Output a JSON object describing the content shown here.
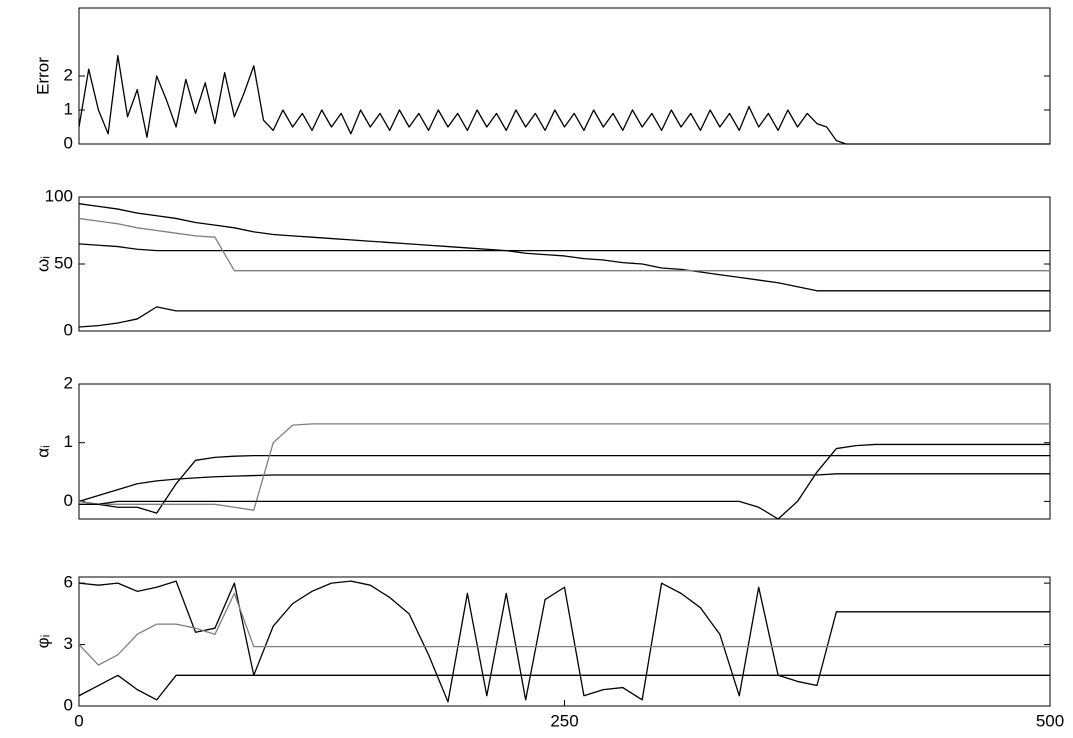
{
  "chart_data": [
    {
      "type": "line",
      "ylabel": "Error",
      "x": [
        0,
        5,
        10,
        15,
        20,
        25,
        30,
        35,
        40,
        45,
        50,
        55,
        60,
        65,
        70,
        75,
        80,
        85,
        90,
        95,
        100,
        105,
        110,
        115,
        120,
        125,
        130,
        135,
        140,
        145,
        150,
        155,
        160,
        165,
        170,
        175,
        180,
        185,
        190,
        195,
        200,
        205,
        210,
        215,
        220,
        225,
        230,
        235,
        240,
        245,
        250,
        255,
        260,
        265,
        270,
        275,
        280,
        285,
        290,
        295,
        300,
        305,
        310,
        315,
        320,
        325,
        330,
        335,
        340,
        345,
        350,
        355,
        360,
        365,
        370,
        375,
        380,
        385,
        390,
        395,
        400,
        405,
        410,
        415,
        420,
        425,
        430,
        435,
        440,
        445,
        450,
        455,
        460,
        465,
        470,
        475,
        480,
        485,
        490,
        495,
        500
      ],
      "series": [
        {
          "color": "#000000",
          "values": [
            0.5,
            2.2,
            1.0,
            0.3,
            2.6,
            0.8,
            1.6,
            0.2,
            2.0,
            1.3,
            0.5,
            1.9,
            0.9,
            1.8,
            0.6,
            2.1,
            0.8,
            1.5,
            2.3,
            0.7,
            0.4,
            1.0,
            0.5,
            0.9,
            0.4,
            1.0,
            0.5,
            0.9,
            0.3,
            1.0,
            0.5,
            0.9,
            0.4,
            1.0,
            0.5,
            0.9,
            0.4,
            1.0,
            0.5,
            0.9,
            0.4,
            1.0,
            0.5,
            0.9,
            0.4,
            1.0,
            0.5,
            0.9,
            0.4,
            1.0,
            0.5,
            0.9,
            0.4,
            1.0,
            0.5,
            0.9,
            0.4,
            1.0,
            0.5,
            0.9,
            0.4,
            1.0,
            0.5,
            0.9,
            0.4,
            1.0,
            0.5,
            0.9,
            0.4,
            1.1,
            0.5,
            0.9,
            0.4,
            1.0,
            0.5,
            0.9,
            0.6,
            0.5,
            0.1,
            0,
            0,
            0,
            0,
            0,
            0,
            0,
            0,
            0,
            0,
            0,
            0,
            0,
            0,
            0,
            0,
            0,
            0,
            0,
            0,
            0,
            0
          ]
        }
      ],
      "xlim": [
        0,
        500
      ],
      "ylim": [
        0,
        4
      ],
      "yticks": [
        0,
        1,
        2
      ]
    },
    {
      "type": "line",
      "ylabel": "ωᵢ",
      "x": [
        0,
        10,
        20,
        30,
        40,
        50,
        60,
        70,
        80,
        90,
        100,
        110,
        120,
        130,
        140,
        150,
        160,
        170,
        180,
        190,
        200,
        210,
        220,
        230,
        240,
        250,
        260,
        270,
        280,
        290,
        300,
        310,
        320,
        330,
        340,
        350,
        360,
        370,
        380,
        390,
        400,
        410,
        420,
        430,
        440,
        450,
        460,
        470,
        480,
        490,
        500
      ],
      "series": [
        {
          "color": "#000000",
          "values": [
            95,
            93,
            91,
            88,
            86,
            84,
            81,
            79,
            77,
            74,
            72,
            71,
            70,
            69,
            68,
            67,
            66,
            65,
            64,
            63,
            62,
            61,
            60,
            58,
            57,
            56,
            54,
            53,
            51,
            50,
            47,
            46,
            44,
            42,
            40,
            38,
            36,
            33,
            30,
            30,
            30,
            30,
            30,
            30,
            30,
            30,
            30,
            30,
            30,
            30,
            30
          ]
        },
        {
          "color": "#000000",
          "values": [
            65,
            64,
            63,
            61,
            60,
            60,
            60,
            60,
            60,
            60,
            60,
            60,
            60,
            60,
            60,
            60,
            60,
            60,
            60,
            60,
            60,
            60,
            60,
            60,
            60,
            60,
            60,
            60,
            60,
            60,
            60,
            60,
            60,
            60,
            60,
            60,
            60,
            60,
            60,
            60,
            60,
            60,
            60,
            60,
            60,
            60,
            60,
            60,
            60,
            60,
            60
          ]
        },
        {
          "color": "#7f7f7f",
          "values": [
            84,
            82,
            80,
            77,
            75,
            73,
            71,
            70,
            45,
            45,
            45,
            45,
            45,
            45,
            45,
            45,
            45,
            45,
            45,
            45,
            45,
            45,
            45,
            45,
            45,
            45,
            45,
            45,
            45,
            45,
            45,
            45,
            45,
            45,
            45,
            45,
            45,
            45,
            45,
            45,
            45,
            45,
            45,
            45,
            45,
            45,
            45,
            45,
            45,
            45,
            45
          ]
        },
        {
          "color": "#000000",
          "values": [
            3,
            4,
            6,
            9,
            18,
            15,
            15,
            15,
            15,
            15,
            15,
            15,
            15,
            15,
            15,
            15,
            15,
            15,
            15,
            15,
            15,
            15,
            15,
            15,
            15,
            15,
            15,
            15,
            15,
            15,
            15,
            15,
            15,
            15,
            15,
            15,
            15,
            15,
            15,
            15,
            15,
            15,
            15,
            15,
            15,
            15,
            15,
            15,
            15,
            15,
            15
          ]
        }
      ],
      "xlim": [
        0,
        500
      ],
      "ylim": [
        0,
        100
      ],
      "yticks": [
        0,
        50,
        100
      ]
    },
    {
      "type": "line",
      "ylabel": "αᵢ",
      "x": [
        0,
        10,
        20,
        30,
        40,
        50,
        60,
        70,
        80,
        90,
        100,
        110,
        120,
        130,
        140,
        150,
        160,
        170,
        180,
        190,
        200,
        210,
        220,
        230,
        240,
        250,
        260,
        270,
        280,
        290,
        300,
        310,
        320,
        330,
        340,
        350,
        360,
        370,
        380,
        390,
        400,
        410,
        420,
        430,
        440,
        450,
        460,
        470,
        480,
        490,
        500
      ],
      "series": [
        {
          "color": "#000000",
          "values": [
            0,
            -0.05,
            -0.1,
            -0.1,
            -0.2,
            0.3,
            0.7,
            0.75,
            0.77,
            0.78,
            0.78,
            0.78,
            0.78,
            0.78,
            0.78,
            0.78,
            0.78,
            0.78,
            0.78,
            0.78,
            0.78,
            0.78,
            0.78,
            0.78,
            0.78,
            0.78,
            0.78,
            0.78,
            0.78,
            0.78,
            0.78,
            0.78,
            0.78,
            0.78,
            0.78,
            0.78,
            0.78,
            0.78,
            0.78,
            0.78,
            0.78,
            0.78,
            0.78,
            0.78,
            0.78,
            0.78,
            0.78,
            0.78,
            0.78,
            0.78,
            0.78
          ]
        },
        {
          "color": "#000000",
          "values": [
            0,
            0.1,
            0.2,
            0.3,
            0.35,
            0.38,
            0.4,
            0.42,
            0.43,
            0.44,
            0.45,
            0.45,
            0.45,
            0.45,
            0.45,
            0.45,
            0.45,
            0.45,
            0.45,
            0.45,
            0.45,
            0.45,
            0.45,
            0.45,
            0.45,
            0.45,
            0.45,
            0.45,
            0.45,
            0.45,
            0.45,
            0.45,
            0.45,
            0.45,
            0.45,
            0.45,
            0.45,
            0.45,
            0.45,
            0.47,
            0.47,
            0.47,
            0.47,
            0.47,
            0.47,
            0.47,
            0.47,
            0.47,
            0.47,
            0.47,
            0.47
          ]
        },
        {
          "color": "#7f7f7f",
          "values": [
            0,
            -0.05,
            -0.05,
            -0.05,
            -0.05,
            -0.05,
            -0.05,
            -0.05,
            -0.1,
            -0.15,
            1.0,
            1.3,
            1.32,
            1.32,
            1.32,
            1.32,
            1.32,
            1.32,
            1.32,
            1.32,
            1.32,
            1.32,
            1.32,
            1.32,
            1.32,
            1.32,
            1.32,
            1.32,
            1.32,
            1.32,
            1.32,
            1.32,
            1.32,
            1.32,
            1.32,
            1.32,
            1.32,
            1.32,
            1.32,
            1.32,
            1.32,
            1.32,
            1.32,
            1.32,
            1.32,
            1.32,
            1.32,
            1.32,
            1.32,
            1.32,
            1.32
          ]
        },
        {
          "color": "#000000",
          "values": [
            -0.05,
            -0.05,
            0,
            0,
            0,
            0,
            0,
            0,
            0,
            0,
            0,
            0,
            0,
            0,
            0,
            0,
            0,
            0,
            0,
            0,
            0,
            0,
            0,
            0,
            0,
            0,
            0,
            0,
            0,
            0,
            0,
            0,
            0,
            0,
            0,
            -0.1,
            -0.3,
            0,
            0.5,
            0.9,
            0.95,
            0.97,
            0.97,
            0.97,
            0.97,
            0.97,
            0.97,
            0.97,
            0.97,
            0.97,
            0.97
          ]
        }
      ],
      "xlim": [
        0,
        500
      ],
      "ylim": [
        -0.3,
        2
      ],
      "yticks": [
        0,
        1,
        2
      ]
    },
    {
      "type": "line",
      "ylabel": "φᵢ",
      "x": [
        0,
        10,
        20,
        30,
        40,
        50,
        60,
        70,
        80,
        90,
        100,
        110,
        120,
        130,
        140,
        150,
        160,
        170,
        180,
        190,
        200,
        210,
        220,
        230,
        240,
        250,
        260,
        270,
        280,
        290,
        300,
        310,
        320,
        330,
        340,
        350,
        360,
        370,
        380,
        390,
        400,
        410,
        420,
        430,
        440,
        450,
        460,
        470,
        480,
        490,
        500
      ],
      "series": [
        {
          "color": "#000000",
          "values": [
            6,
            5.9,
            6.0,
            5.6,
            5.8,
            6.1,
            3.6,
            3.8,
            6,
            1.5,
            3.9,
            5.0,
            5.6,
            6.0,
            6.1,
            5.9,
            5.3,
            4.5,
            2.5,
            0.2,
            5.5,
            0.5,
            5.5,
            0.3,
            5.2,
            5.8,
            0.5,
            0.8,
            0.9,
            0.3,
            6.0,
            5.5,
            4.8,
            3.5,
            0.5,
            5.8,
            1.5,
            1.2,
            1.0,
            4.6,
            4.6,
            4.6,
            4.6,
            4.6,
            4.6,
            4.6,
            4.6,
            4.6,
            4.6,
            4.6,
            4.6
          ]
        },
        {
          "color": "#7f7f7f",
          "values": [
            3,
            2,
            2.5,
            3.5,
            4.0,
            4.0,
            3.8,
            3.5,
            5.5,
            2.9,
            2.9,
            2.9,
            2.9,
            2.9,
            2.9,
            2.9,
            2.9,
            2.9,
            2.9,
            2.9,
            2.9,
            2.9,
            2.9,
            2.9,
            2.9,
            2.9,
            2.9,
            2.9,
            2.9,
            2.9,
            2.9,
            2.9,
            2.9,
            2.9,
            2.9,
            2.9,
            2.9,
            2.9,
            2.9,
            2.9,
            2.9,
            2.9,
            2.9,
            2.9,
            2.9,
            2.9,
            2.9,
            2.9,
            2.9,
            2.9,
            2.9
          ]
        },
        {
          "color": "#000000",
          "values": [
            0.5,
            1.0,
            1.5,
            0.8,
            0.3,
            1.5,
            1.5,
            1.5,
            1.5,
            1.5,
            1.5,
            1.5,
            1.5,
            1.5,
            1.5,
            1.5,
            1.5,
            1.5,
            1.5,
            1.5,
            1.5,
            1.5,
            1.5,
            1.5,
            1.5,
            1.5,
            1.5,
            1.5,
            1.5,
            1.5,
            1.5,
            1.5,
            1.5,
            1.5,
            1.5,
            1.5,
            1.5,
            1.5,
            1.5,
            1.5,
            1.5,
            1.5,
            1.5,
            1.5,
            1.5,
            1.5,
            1.5,
            1.5,
            1.5,
            1.5,
            1.5
          ]
        }
      ],
      "xlim": [
        0,
        500
      ],
      "ylim": [
        0,
        6.3
      ],
      "yticks": [
        0,
        3,
        6
      ],
      "xticks": [
        0,
        250,
        500
      ]
    }
  ]
}
